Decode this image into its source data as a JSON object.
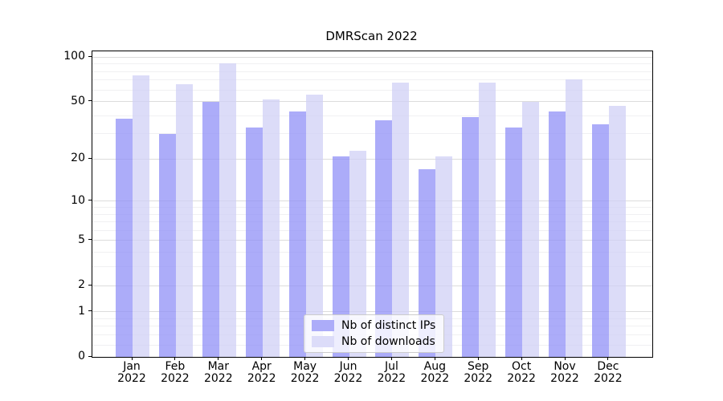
{
  "chart_data": {
    "type": "bar",
    "title": "DMRScan 2022",
    "x_categories": [
      "Jan",
      "Feb",
      "Mar",
      "Apr",
      "May",
      "Jun",
      "Jul",
      "Aug",
      "Sep",
      "Oct",
      "Nov",
      "Dec"
    ],
    "x_year": "2022",
    "series": [
      {
        "name": "Nb of distinct IPs",
        "values": [
          38,
          30,
          50,
          33,
          43,
          21,
          37,
          17,
          39,
          33,
          43,
          35
        ],
        "color": "rgba(144,144,247,0.75)",
        "swatch_color": "#acacf9"
      },
      {
        "name": "Nb of downloads",
        "values": [
          75,
          66,
          91,
          52,
          56,
          23,
          67,
          21,
          67,
          50,
          71,
          47
        ],
        "color": "rgba(208,208,245,0.75)",
        "swatch_color": "#dcdcf9"
      }
    ],
    "yscale": "log1p",
    "ylim": [
      0,
      109.5
    ],
    "y_major_ticks": [
      0,
      1,
      2,
      5,
      10,
      20,
      50,
      100
    ],
    "y_minor_ticks": [
      0.2,
      0.4,
      0.6,
      0.8,
      3,
      4,
      6,
      7,
      8,
      9,
      30,
      40,
      60,
      70,
      80,
      90
    ],
    "grid": {
      "major_color": "#dcdcdc",
      "minor_color": "#f0f0f2"
    },
    "legend": {
      "position": "lower center"
    }
  }
}
